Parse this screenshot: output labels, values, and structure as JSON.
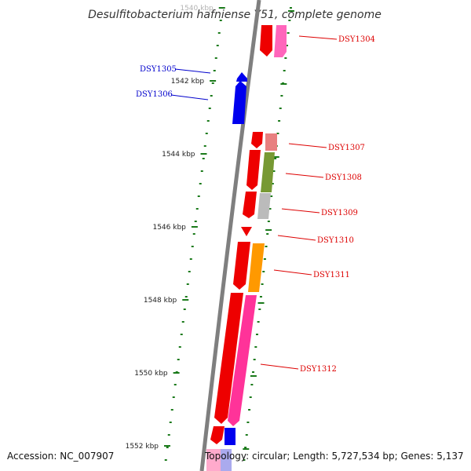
{
  "title": "Desulfitobacterium hafniense Y51, complete genome",
  "colors": {
    "backbone": "#7f7f7f",
    "tick": "#1a7a1a",
    "forward_label": "#dd0000",
    "reverse_label": "#0000cc"
  },
  "scale_labels": [
    {
      "kbp": 1540,
      "label": "1540 kbp"
    },
    {
      "kbp": 1542,
      "label": "1542 kbp"
    },
    {
      "kbp": 1544,
      "label": "1544 kbp"
    },
    {
      "kbp": 1546,
      "label": "1546 kbp"
    },
    {
      "kbp": 1548,
      "label": "1548 kbp"
    },
    {
      "kbp": 1550,
      "label": "1550 kbp"
    },
    {
      "kbp": 1552,
      "label": "1552 kbp"
    }
  ],
  "genes": [
    {
      "id": "DSY1304",
      "strand": "forward",
      "color": "#ff66bb"
    },
    {
      "id": "DSY1305",
      "strand": "reverse",
      "color": "#0000ee"
    },
    {
      "id": "DSY1306",
      "strand": "reverse",
      "color": "#0000ee"
    },
    {
      "id": "DSY1307",
      "strand": "forward",
      "color": "#e88080"
    },
    {
      "id": "DSY1308",
      "strand": "forward",
      "color": "#779933"
    },
    {
      "id": "DSY1309",
      "strand": "forward",
      "color": "#bbbbbb"
    },
    {
      "id": "DSY1310",
      "strand": "forward",
      "color": "#ee0000"
    },
    {
      "id": "DSY1311",
      "strand": "forward",
      "color": "#ff9900"
    },
    {
      "id": "DSY1312",
      "strand": "forward",
      "color": "#ff3399"
    }
  ],
  "footer": {
    "accession": "Accession: NC_007907",
    "topology": "Topology: circular; Length: 5,727,534 bp; Genes: 5,137"
  }
}
